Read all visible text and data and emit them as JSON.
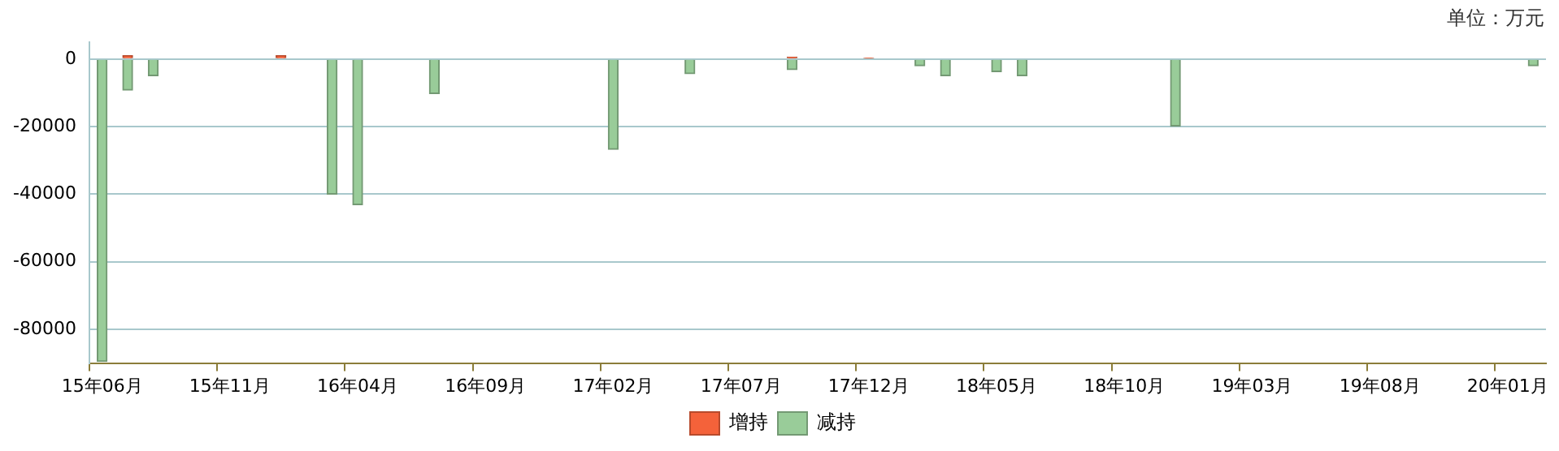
{
  "chart_data": {
    "type": "bar",
    "stacked": true,
    "legend": "bottom",
    "grid": "y",
    "annotations": [
      "单位：万元"
    ],
    "categories": [
      "15年06月",
      null,
      null,
      null,
      null,
      "15年11月",
      null,
      null,
      null,
      null,
      "16年04月",
      null,
      null,
      null,
      null,
      "16年09月",
      null,
      null,
      null,
      null,
      "17年02月",
      null,
      null,
      null,
      null,
      "17年07月",
      null,
      null,
      null,
      null,
      "17年12月",
      null,
      null,
      null,
      null,
      "18年05月",
      null,
      null,
      null,
      null,
      "18年10月",
      null,
      null,
      null,
      null,
      "19年03月",
      null,
      null,
      null,
      null,
      "19年08月",
      null,
      null,
      null,
      null,
      "20年01月",
      null
    ],
    "ylim": [
      -90000,
      5000
    ],
    "yticks": [
      -80000,
      -60000,
      -40000,
      -20000,
      0
    ],
    "series": [
      {
        "name": "增持",
        "color": "#f4623a",
        "values": [
          null,
          1000,
          null,
          null,
          null,
          null,
          null,
          1000,
          null,
          null,
          null,
          null,
          null,
          null,
          null,
          null,
          null,
          null,
          null,
          null,
          null,
          null,
          null,
          null,
          null,
          null,
          null,
          600,
          null,
          null,
          300,
          null,
          null,
          null,
          null,
          null,
          null,
          null,
          null,
          null,
          null,
          null,
          null,
          null,
          null,
          null,
          null,
          null,
          null,
          null,
          null,
          null,
          null,
          null,
          null,
          null,
          null
        ]
      },
      {
        "name": "减持",
        "color": "#99cc99",
        "values": [
          -89500,
          -9200,
          -4900,
          null,
          null,
          null,
          null,
          null,
          null,
          -40000,
          -43100,
          null,
          null,
          -10200,
          null,
          null,
          null,
          null,
          null,
          null,
          -26700,
          null,
          null,
          -4300,
          null,
          null,
          null,
          -3100,
          null,
          null,
          null,
          null,
          -2000,
          -4900,
          null,
          -3700,
          -4900,
          null,
          null,
          null,
          null,
          null,
          -19800,
          null,
          null,
          null,
          null,
          null,
          null,
          null,
          null,
          null,
          null,
          null,
          null,
          null,
          -2000
        ]
      }
    ]
  }
}
